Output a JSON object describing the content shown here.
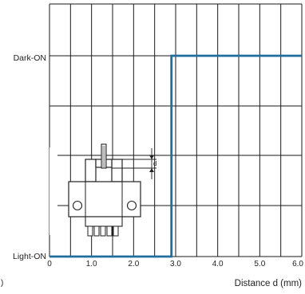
{
  "chart_data": {
    "type": "line",
    "title": "",
    "xlabel": "Distance d (mm)",
    "ylabel": "",
    "xlim": [
      0,
      6.0
    ],
    "x_ticks": [
      "0",
      "1.0",
      "2.0",
      "3.0",
      "4.0",
      "5.0",
      "6.0"
    ],
    "y_categories": [
      "Light-ON",
      "Dark-ON"
    ],
    "grid": true,
    "stray_mark": ")",
    "series": [
      {
        "color": "#1f6e9e",
        "style": "step",
        "points": [
          {
            "x": 0,
            "y": "Light-ON"
          },
          {
            "x": 2.9,
            "y": "Light-ON"
          },
          {
            "x": 2.9,
            "y": "Dark-ON"
          },
          {
            "x": 6.0,
            "y": "Dark-ON"
          }
        ]
      }
    ],
    "inset": {
      "description_icon": "sensor-diagram",
      "dimension_label": "d"
    }
  },
  "colors": {
    "grid": "#1a1a1a",
    "series": "#1f6e9e"
  }
}
